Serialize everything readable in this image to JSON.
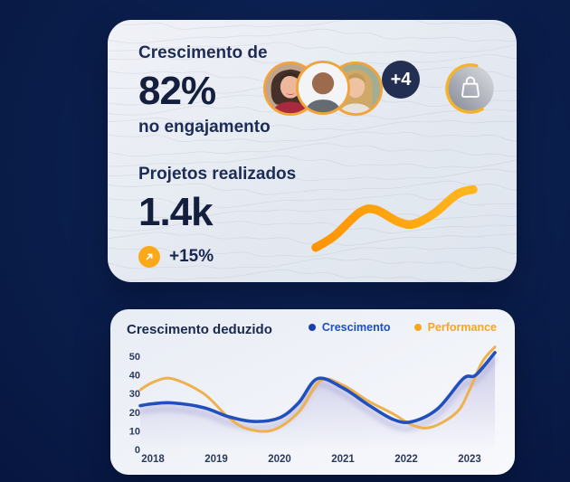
{
  "top_card": {
    "engagement": {
      "line1": "Crescimento de",
      "value": "82%",
      "line2": "no engajamento"
    },
    "team": {
      "avatars": [
        {
          "name": "avatar-woman-dark-hair"
        },
        {
          "name": "avatar-bald-man"
        },
        {
          "name": "avatar-blonde-woman"
        }
      ],
      "more_count": "+4"
    },
    "bag_button": {
      "icon": "shopping-bag-icon"
    },
    "projects": {
      "label": "Projetos realizados",
      "value": "1.4k",
      "delta": "+15%",
      "trend_icon": "arrow-up-right-icon",
      "sparkline": {
        "x": [
          0,
          12,
          28,
          38,
          52,
          62,
          75,
          90,
          100
        ],
        "y": [
          6,
          24,
          60,
          64,
          46,
          42,
          58,
          88,
          95
        ]
      }
    }
  },
  "bottom_card": {
    "title": "Crescimento deduzido",
    "legend": [
      {
        "label": "Crescimento",
        "color": "#1d4fc0"
      },
      {
        "label": "Performance",
        "color": "#f6a623"
      }
    ]
  },
  "chart_data": {
    "type": "line",
    "title": "Crescimento deduzido",
    "x_ticks": [
      2018,
      2019,
      2020,
      2021,
      2022,
      2023
    ],
    "y_ticks": [
      0,
      10,
      20,
      30,
      40,
      50
    ],
    "xlim": [
      2017.8,
      2023.4
    ],
    "ylim": [
      0,
      55
    ],
    "grid": false,
    "legend_position": "top-right",
    "series": [
      {
        "name": "Crescimento",
        "color": "#2150be",
        "area": true,
        "x": [
          2017.8,
          2018,
          2018.3,
          2018.8,
          2019.2,
          2019.6,
          2020,
          2020.3,
          2020.6,
          2021,
          2021.4,
          2021.8,
          2022.1,
          2022.5,
          2022.9,
          2023.1,
          2023.4
        ],
        "values": [
          23.5,
          24.5,
          25,
          22.5,
          17.5,
          15,
          17,
          25,
          38,
          33,
          24,
          16,
          15,
          22,
          38,
          40,
          52
        ]
      },
      {
        "name": "Performance",
        "color": "#edb14d",
        "area": false,
        "x": [
          2017.8,
          2018,
          2018.3,
          2018.8,
          2019.2,
          2019.5,
          2019.9,
          2020.3,
          2020.65,
          2021,
          2021.4,
          2021.8,
          2022.1,
          2022.4,
          2022.8,
          2023,
          2023.2,
          2023.4
        ],
        "values": [
          32,
          36,
          38,
          30,
          17,
          11,
          10.5,
          20,
          37,
          34.5,
          26,
          19,
          13,
          12,
          20,
          32,
          47,
          55
        ]
      }
    ]
  },
  "colors": {
    "background": "#0a1d4a",
    "accent_orange": "#fba919",
    "badge_navy": "#232f52",
    "navy_text": "#182650"
  }
}
